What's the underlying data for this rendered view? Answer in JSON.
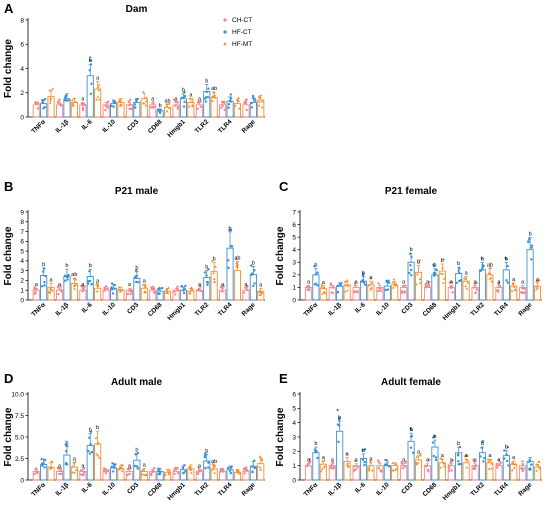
{
  "colors": {
    "CH-CT": "#f4868c",
    "HF-CT": "#3d8fd6",
    "HF-MT": "#f28e2b"
  },
  "legend": [
    "CH-CT",
    "HF-CT",
    "HF-MT"
  ],
  "chart_data": [
    {
      "panel": "A",
      "type": "bar",
      "title": "Dam",
      "ylabel": "Fold change",
      "ylim": [
        0,
        8
      ],
      "yticks": [
        0,
        2,
        4,
        6,
        8
      ],
      "categories": [
        "TNFα",
        "IL-1β",
        "IL-6",
        "IL-10",
        "CD3",
        "CD68",
        "Hmgb1",
        "TLR2",
        "TLR4",
        "Rage"
      ],
      "series": [
        {
          "name": "CH-CT",
          "values": [
            1.0,
            1.0,
            1.0,
            1.0,
            1.0,
            1.0,
            1.0,
            1.0,
            1.0,
            1.0
          ]
        },
        {
          "name": "HF-CT",
          "values": [
            1.1,
            1.5,
            3.4,
            1.1,
            1.2,
            0.5,
            1.5,
            2.1,
            1.3,
            1.2
          ]
        },
        {
          "name": "HF-MT",
          "values": [
            1.7,
            1.2,
            2.3,
            1.2,
            1.5,
            0.8,
            1.2,
            1.6,
            1.1,
            1.4
          ]
        }
      ],
      "sig": [
        [
          "",
          "",
          ""
        ],
        [
          "",
          "",
          ""
        ],
        [
          "a",
          "b",
          "a"
        ],
        [
          "",
          "",
          ""
        ],
        [
          "",
          "",
          ""
        ],
        [
          "a",
          "b",
          "ab"
        ],
        [
          "a",
          "b",
          "a"
        ],
        [
          "a",
          "b",
          "ab"
        ],
        [
          "",
          "",
          ""
        ],
        [
          "",
          "",
          ""
        ]
      ]
    },
    {
      "panel": "B",
      "type": "bar",
      "title": "P21 male",
      "ylabel": "Fold change",
      "ylim": [
        0,
        9
      ],
      "yticks": [
        0,
        1,
        2,
        3,
        4,
        5,
        6,
        7,
        8,
        9
      ],
      "categories": [
        "TNFα",
        "IL-1β",
        "IL-6",
        "IL-10",
        "CD3",
        "CD68",
        "Hmgb1",
        "TLR2",
        "TLR4",
        "Rage"
      ],
      "series": [
        {
          "name": "CH-CT",
          "values": [
            1.0,
            1.0,
            1.0,
            1.0,
            1.0,
            1.0,
            1.0,
            1.0,
            1.0,
            1.0
          ]
        },
        {
          "name": "HF-CT",
          "values": [
            2.5,
            2.4,
            2.4,
            1.2,
            2.2,
            0.9,
            1.0,
            2.3,
            5.3,
            2.6
          ]
        },
        {
          "name": "HF-MT",
          "values": [
            1.3,
            1.7,
            1.2,
            1.0,
            1.2,
            0.9,
            0.9,
            2.9,
            3.0,
            0.9
          ]
        }
      ],
      "sig": [
        [
          "a",
          "b",
          "a"
        ],
        [
          "a",
          "b",
          "ab"
        ],
        [
          "a",
          "b",
          "a"
        ],
        [
          "",
          "",
          ""
        ],
        [
          "a",
          "b",
          "a"
        ],
        [
          "",
          "",
          ""
        ],
        [
          "",
          "",
          ""
        ],
        [
          "a",
          "b",
          "b"
        ],
        [
          "a",
          "b",
          "ab"
        ],
        [
          "a",
          "b",
          "a"
        ]
      ]
    },
    {
      "panel": "C",
      "type": "bar",
      "title": "P21 female",
      "ylabel": "Fold change",
      "ylim": [
        0,
        7
      ],
      "yticks": [
        0,
        1,
        2,
        3,
        4,
        5,
        6,
        7
      ],
      "categories": [
        "TNFα",
        "IL-1β",
        "IL-6",
        "IL-10",
        "CD3",
        "CD68",
        "Hmgb1",
        "TLR2",
        "TLR4",
        "Rage"
      ],
      "series": [
        {
          "name": "CH-CT",
          "values": [
            1.0,
            1.0,
            1.0,
            1.0,
            1.0,
            1.0,
            1.0,
            1.0,
            1.0,
            1.0
          ]
        },
        {
          "name": "HF-CT",
          "values": [
            2.0,
            1.1,
            1.5,
            1.1,
            3.0,
            2.0,
            2.1,
            2.4,
            2.4,
            4.0
          ]
        },
        {
          "name": "HF-MT",
          "values": [
            0.9,
            1.2,
            1.2,
            1.2,
            2.2,
            2.3,
            1.5,
            2.0,
            1.1,
            1.1
          ]
        }
      ],
      "sig": [
        [
          "a",
          "b",
          "a"
        ],
        [
          "",
          "",
          ""
        ],
        [
          "a",
          "b",
          "a"
        ],
        [
          "",
          "",
          ""
        ],
        [
          "a",
          "b",
          "b"
        ],
        [
          "a",
          "b",
          "b"
        ],
        [
          "a",
          "b",
          "a"
        ],
        [
          "a",
          "b",
          "ab"
        ],
        [
          "a",
          "b",
          "a"
        ],
        [
          "a",
          "b",
          "a"
        ]
      ]
    },
    {
      "panel": "D",
      "type": "bar",
      "title": "Adult male",
      "ylabel": "Fold change",
      "ylim": [
        0,
        10
      ],
      "yticks": [
        0,
        2.5,
        5.0,
        7.5,
        10.0
      ],
      "ytick_labels": [
        "0",
        "2.5",
        "5.0",
        "7.5",
        "10.0"
      ],
      "categories": [
        "TNFα",
        "IL-1β",
        "IL-6",
        "IL-10",
        "CD3",
        "CD68",
        "Hmgb1",
        "TLR2",
        "TLR4",
        "Rage"
      ],
      "series": [
        {
          "name": "CH-CT",
          "values": [
            1.0,
            1.0,
            1.0,
            1.0,
            1.0,
            1.0,
            1.0,
            1.0,
            1.0,
            1.0
          ]
        },
        {
          "name": "HF-CT",
          "values": [
            1.8,
            2.9,
            4.0,
            1.4,
            2.3,
            1.0,
            1.2,
            2.2,
            1.2,
            1.6
          ]
        },
        {
          "name": "HF-MT",
          "values": [
            1.5,
            1.5,
            4.2,
            1.3,
            1.0,
            0.9,
            1.3,
            1.3,
            0.9,
            1.9
          ]
        }
      ],
      "sig": [
        [
          "",
          "",
          ""
        ],
        [
          "a",
          "b",
          "a"
        ],
        [
          "a",
          "b",
          "b"
        ],
        [
          "",
          "",
          ""
        ],
        [
          "a",
          "b",
          "a"
        ],
        [
          "",
          "",
          ""
        ],
        [
          "",
          "",
          ""
        ],
        [
          "a",
          "b",
          "ab"
        ],
        [
          "",
          "",
          ""
        ],
        [
          "",
          "",
          ""
        ]
      ]
    },
    {
      "panel": "E",
      "type": "bar",
      "title": "Adult female",
      "ylabel": "Fold change",
      "ylim": [
        0,
        6
      ],
      "yticks": [
        0,
        1,
        2,
        3,
        4,
        5,
        6
      ],
      "categories": [
        "TNFα",
        "IL-1β",
        "IL-6",
        "IL-10",
        "CD3",
        "CD68",
        "Hmgb1",
        "TLR2",
        "TLR4",
        "Rage"
      ],
      "series": [
        {
          "name": "CH-CT",
          "values": [
            1.0,
            1.0,
            1.0,
            1.0,
            1.0,
            1.0,
            1.0,
            1.0,
            1.0,
            1.0
          ]
        },
        {
          "name": "HF-CT",
          "values": [
            1.9,
            3.4,
            1.5,
            1.0,
            2.7,
            2.3,
            1.9,
            1.9,
            1.7,
            1.3
          ]
        },
        {
          "name": "HF-MT",
          "values": [
            1.1,
            1.3,
            1.0,
            1.0,
            1.4,
            1.2,
            1.2,
            1.2,
            1.1,
            0.9
          ]
        }
      ],
      "sig": [
        [
          "a",
          "b",
          "a"
        ],
        [
          "a",
          "b",
          "a"
        ],
        [
          "a",
          "b",
          "a"
        ],
        [
          "",
          "",
          ""
        ],
        [
          "a",
          "b",
          "a"
        ],
        [
          "a",
          "b",
          "a"
        ],
        [
          "a",
          "b",
          "a"
        ],
        [
          "a",
          "b",
          "a"
        ],
        [
          "a",
          "b",
          "a"
        ],
        [
          "",
          "",
          ""
        ]
      ]
    }
  ]
}
